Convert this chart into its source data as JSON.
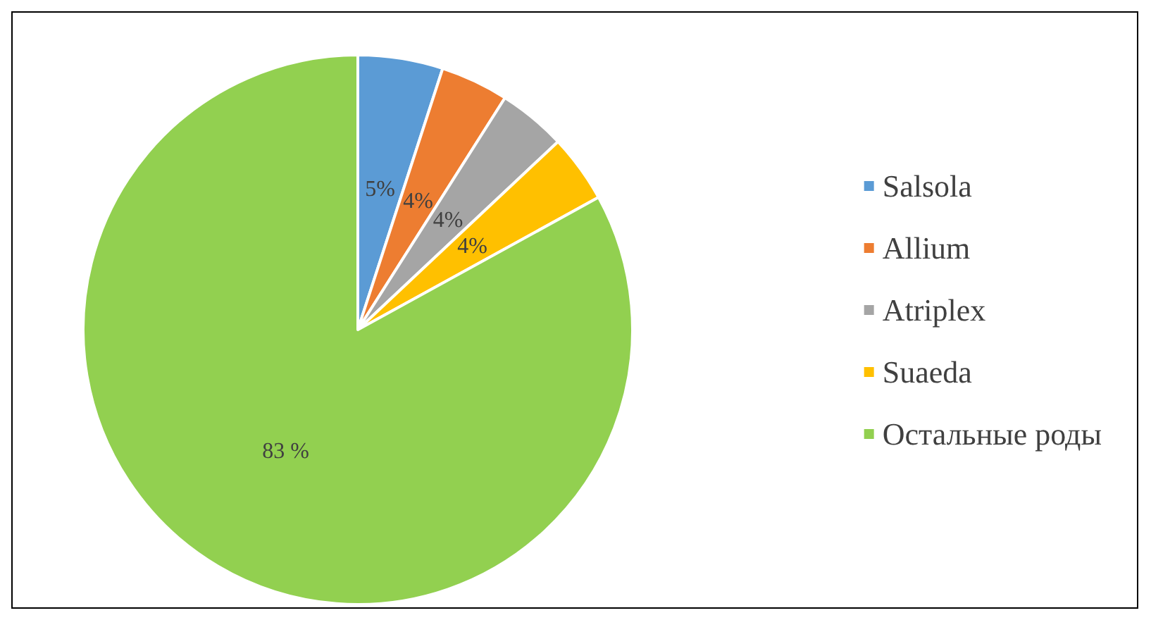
{
  "chart_data": {
    "type": "pie",
    "categories": [
      "Salsola",
      "Allium",
      "Atriplex",
      "Suaeda",
      "Остальные роды"
    ],
    "values": [
      5,
      4,
      4,
      4,
      83
    ],
    "colors": [
      "#5b9bd5",
      "#ed7d31",
      "#a5a5a5",
      "#ffc000",
      "#92d050"
    ],
    "value_labels": [
      "5%",
      "4%",
      "4%",
      "4%",
      "83 %"
    ],
    "legend": "right"
  }
}
